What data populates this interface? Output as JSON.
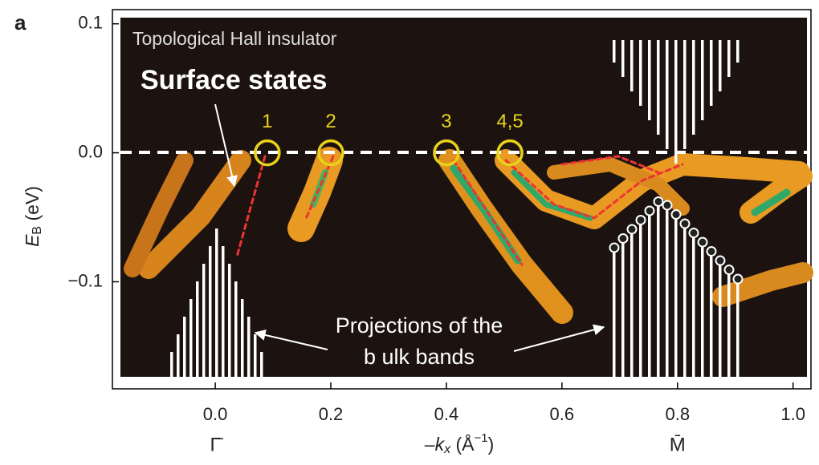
{
  "chart_data": {
    "type": "arpes",
    "panel_label": "a",
    "title": "Topological Hall insulator",
    "annotations": [
      "Surface states",
      "Projections of the",
      "b ulk bands"
    ],
    "x_label": [
      "–",
      "k",
      "x",
      " (Å",
      "−1",
      ")"
    ],
    "y_label": [
      "E",
      "B",
      " (eV)"
    ],
    "xlim": [
      -0.178,
      1.031
    ],
    "ylim": [
      -0.183,
      0.111
    ],
    "xticks": [
      {
        "value": 0,
        "label": "0.0"
      },
      0.2,
      0.4,
      0.6,
      0.8,
      {
        "value": 1,
        "label": "1.0"
      }
    ],
    "yticks": [
      0.1,
      {
        "value": 0,
        "label": "0.0"
      },
      {
        "value": -0.1,
        "label": "−0.1"
      }
    ],
    "symmetry_points": [
      {
        "label": "Γ̄",
        "x": 0
      },
      {
        "label": "M̄",
        "x": 0.8
      }
    ],
    "crossings": [
      {
        "label": "1",
        "x": 0.09,
        "y": 0
      },
      {
        "label": "2",
        "x": 0.2,
        "y": 0
      },
      {
        "label": "3",
        "x": 0.4,
        "y": 0
      },
      {
        "label": "4,5",
        "x": 0.51,
        "y": 0
      }
    ],
    "crossing_color": "#e8d21a"
  }
}
